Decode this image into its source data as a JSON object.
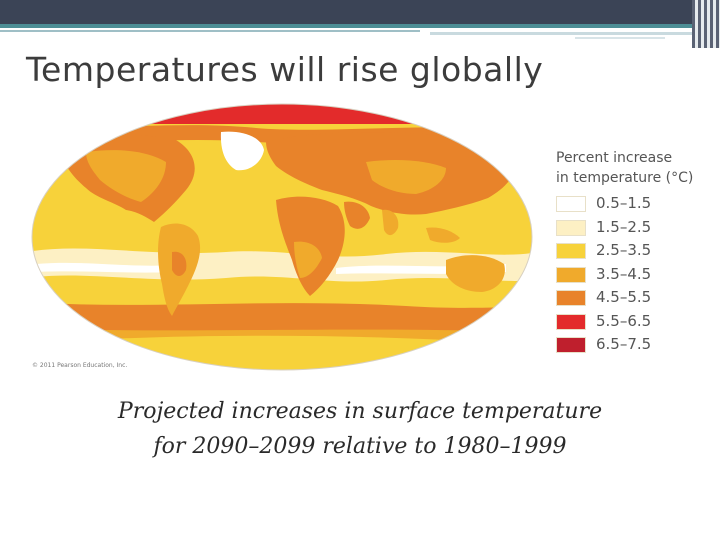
{
  "slide": {
    "title": "Temperatures will rise globally",
    "caption_line1": "Projected increases in surface temperature",
    "caption_line2": "for 2090–2099 relative to 1980–1999"
  },
  "map": {
    "credit": "© 2011 Pearson Education, Inc.",
    "legend_title_line1": "Percent increase",
    "legend_title_line2": "in temperature (°C)",
    "legend": [
      {
        "range": "0.5–1.5",
        "color": "#ffffff"
      },
      {
        "range": "1.5–2.5",
        "color": "#fdf0c4"
      },
      {
        "range": "2.5–3.5",
        "color": "#f7d23a"
      },
      {
        "range": "3.5–4.5",
        "color": "#f0aa2c"
      },
      {
        "range": "4.5–5.5",
        "color": "#e8832a"
      },
      {
        "range": "5.5–6.5",
        "color": "#e32b2b"
      },
      {
        "range": "6.5–7.5",
        "color": "#bf1f2d"
      }
    ]
  }
}
